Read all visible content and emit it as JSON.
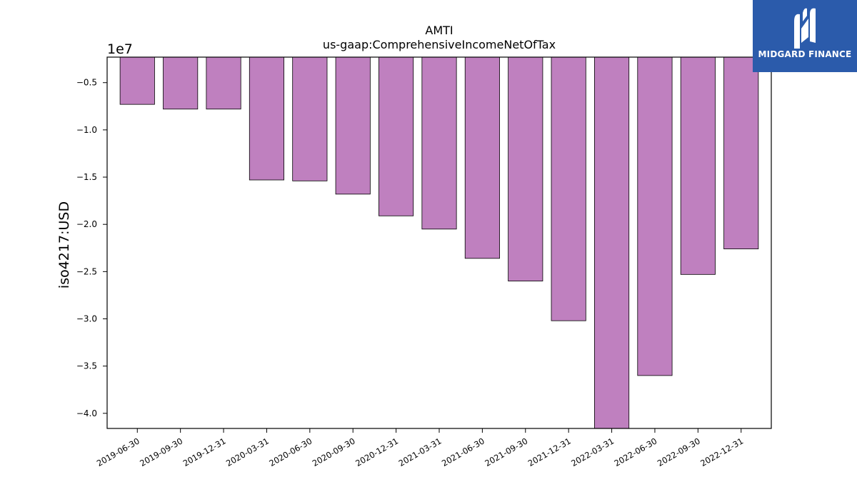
{
  "logo": {
    "text": "MIDGARD FINANCE",
    "icon": "midgard-m-logo-icon",
    "bg_color": "#2b5bab"
  },
  "chart_data": {
    "type": "bar",
    "title_line1": "AMTI",
    "title_line2": "us-gaap:ComprehensiveIncomeNetOfTax",
    "ylabel": "iso4217:USD",
    "offset_label": "1e7",
    "categories": [
      "2019-06-30",
      "2019-09-30",
      "2019-12-31",
      "2020-03-31",
      "2020-06-30",
      "2020-09-30",
      "2020-12-31",
      "2021-03-31",
      "2021-06-30",
      "2021-09-30",
      "2021-12-31",
      "2022-03-31",
      "2022-06-30",
      "2022-09-30",
      "2022-12-31"
    ],
    "values": [
      -7300000,
      -7800000,
      -7800000,
      -15300000,
      -15400000,
      -16800000,
      -19100000,
      -20500000,
      -23600000,
      -26000000,
      -30200000,
      -43000000,
      -36000000,
      -25300000,
      -22600000
    ],
    "yticks": [
      -0.5,
      -1.0,
      -1.5,
      -2.0,
      -2.5,
      -3.0,
      -3.5,
      -4.0
    ],
    "ytick_labels": [
      "−0.5",
      "−1.0",
      "−1.5",
      "−2.0",
      "−2.5",
      "−3.0",
      "−3.5",
      "−4.0"
    ],
    "ylim": [
      -4.16,
      -0.23
    ],
    "bar_color": "#bf80bf",
    "edge_color": "#000000",
    "grid": false
  }
}
